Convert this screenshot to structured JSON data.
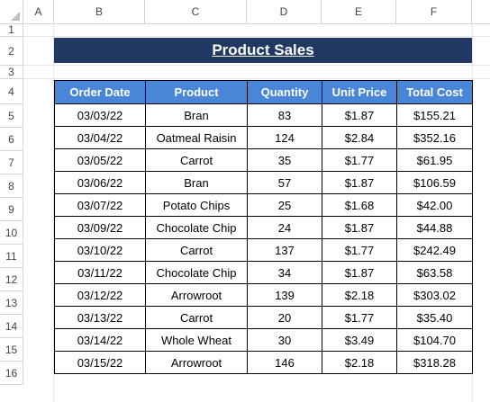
{
  "columns": [
    "A",
    "B",
    "C",
    "D",
    "E",
    "F"
  ],
  "rows": [
    "1",
    "2",
    "3",
    "4",
    "5",
    "6",
    "7",
    "8",
    "9",
    "10",
    "11",
    "12",
    "13",
    "14",
    "15",
    "16"
  ],
  "title": "Product Sales",
  "headers": {
    "order_date": "Order Date",
    "product": "Product",
    "quantity": "Quantity",
    "unit_price": "Unit Price",
    "total_cost": "Total Cost"
  },
  "records": [
    {
      "date": "03/03/22",
      "product": "Bran",
      "qty": "83",
      "price": "$1.87",
      "total": "$155.21"
    },
    {
      "date": "03/04/22",
      "product": "Oatmeal Raisin",
      "qty": "124",
      "price": "$2.84",
      "total": "$352.16"
    },
    {
      "date": "03/05/22",
      "product": "Carrot",
      "qty": "35",
      "price": "$1.77",
      "total": "$61.95"
    },
    {
      "date": "03/06/22",
      "product": "Bran",
      "qty": "57",
      "price": "$1.87",
      "total": "$106.59"
    },
    {
      "date": "03/07/22",
      "product": "Potato Chips",
      "qty": "25",
      "price": "$1.68",
      "total": "$42.00"
    },
    {
      "date": "03/09/22",
      "product": "Chocolate Chip",
      "qty": "24",
      "price": "$1.87",
      "total": "$44.88"
    },
    {
      "date": "03/10/22",
      "product": "Carrot",
      "qty": "137",
      "price": "$1.77",
      "total": "$242.49"
    },
    {
      "date": "03/11/22",
      "product": "Chocolate Chip",
      "qty": "34",
      "price": "$1.87",
      "total": "$63.58"
    },
    {
      "date": "03/12/22",
      "product": "Arrowroot",
      "qty": "139",
      "price": "$2.18",
      "total": "$303.02"
    },
    {
      "date": "03/13/22",
      "product": "Carrot",
      "qty": "20",
      "price": "$1.77",
      "total": "$35.40"
    },
    {
      "date": "03/14/22",
      "product": "Whole Wheat",
      "qty": "30",
      "price": "$3.49",
      "total": "$104.70"
    },
    {
      "date": "03/15/22",
      "product": "Arrowroot",
      "qty": "146",
      "price": "$2.18",
      "total": "$318.28"
    }
  ],
  "colors": {
    "title_bg": "#1f3864",
    "header_bg": "#4a86d8"
  }
}
